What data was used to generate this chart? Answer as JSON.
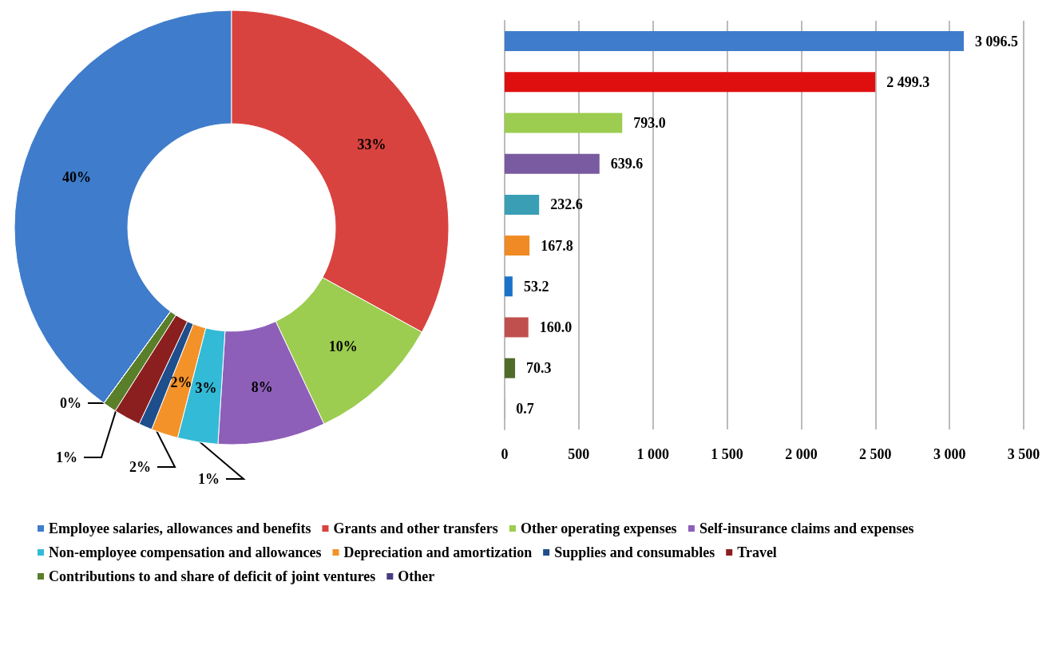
{
  "chart_data": [
    {
      "type": "donut",
      "categories": [
        "Employee salaries, allowances and benefits",
        "Grants and other transfers",
        "Other operating expenses",
        "Self-insurance claims and expenses",
        "Non-employee compensation and allowances",
        "Depreciation and amortization",
        "Supplies and consumables",
        "Travel",
        "Contributions to and share of deficit of joint ventures",
        "Other"
      ],
      "values": [
        40,
        33,
        10,
        8,
        3,
        2,
        1,
        2,
        1,
        0
      ],
      "value_labels": [
        "40%",
        "33%",
        "10%",
        "8%",
        "3%",
        "2%",
        "1%",
        "2%",
        "1%",
        "0%"
      ],
      "colors": [
        "#3f7ccb",
        "#d9433f",
        "#9ccd50",
        "#8e5fb8",
        "#33bad6",
        "#f39229",
        "#1f4e8c",
        "#8b1f1f",
        "#5a7f2a",
        "#4b3b80"
      ],
      "legend": "bottom"
    },
    {
      "type": "bar",
      "orientation": "horizontal",
      "categories": [
        null,
        null,
        null,
        null,
        null,
        null,
        null,
        null,
        null,
        null
      ],
      "values": [
        3096.5,
        2499.3,
        793.0,
        639.6,
        232.6,
        167.8,
        53.2,
        160.0,
        70.3,
        0.7
      ],
      "value_labels": [
        "3 096.5",
        "2 499.3",
        "793.0",
        "639.6",
        "232.6",
        "167.8",
        "53.2",
        "160.0",
        "70.3",
        "0.7"
      ],
      "colors": [
        "#3f7ccb",
        "#e00f0f",
        "#9ccd50",
        "#7a5aa0",
        "#3a9fb5",
        "#f08a24",
        "#1a73c8",
        "#c0504d",
        "#4f6b28",
        "#4b3b80"
      ],
      "xlim": [
        0,
        3500
      ],
      "xticks": [
        0,
        500,
        {
          "value": 1000,
          "label": "1 000"
        },
        {
          "value": 1500,
          "label": "1 500"
        },
        {
          "value": 2000,
          "label": "2 000"
        },
        {
          "value": 2500,
          "label": "2 500"
        },
        {
          "value": 3000,
          "label": "3 000"
        },
        {
          "value": 3500,
          "label": "3 500"
        }
      ],
      "grid": "x",
      "tick_labels": "x"
    }
  ]
}
